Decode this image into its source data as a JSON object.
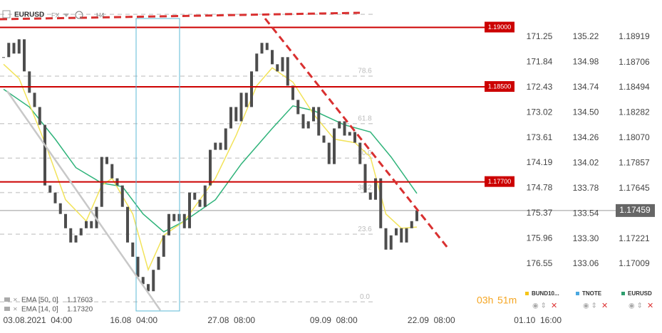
{
  "chart_data": {
    "type": "candlestick",
    "symbol": "EURUSD",
    "market": "FX",
    "timeframe": "H4",
    "xlim": [
      -0.69,
      100
    ],
    "xticks": [
      {
        "value": 6.6,
        "label": "03.08.2021  04:00"
      },
      {
        "value": 25.2,
        "label": "16.08  04:00"
      },
      {
        "value": 44.1,
        "label": "27.08  08:00"
      },
      {
        "value": 63.9,
        "label": "09.09  08:00"
      },
      {
        "value": 82.8,
        "label": "22.09  08:00"
      },
      {
        "value": 103.4,
        "label": "01.10  16:00"
      }
    ],
    "ylim": [
      1.16596,
      1.19141
    ],
    "yticks": [
      1.18919,
      1.18706,
      1.18494,
      1.18282,
      {
        "value": 1.1807,
        "label": "1.18070"
      },
      1.17857,
      1.17645,
      1.17221,
      1.17009
    ],
    "y2lim": [
      177.699,
      170.634
    ],
    "y2ticks": [
      171.25,
      171.84,
      172.43,
      173.02,
      173.61,
      174.19,
      174.78,
      175.37,
      175.96,
      176.55
    ],
    "y3lim": [
      132.593,
      135.471
    ],
    "y3ticks": [
      135.22,
      134.98,
      134.74,
      {
        "value": 134.5,
        "label": "134.50"
      },
      134.26,
      134.02,
      133.78,
      133.54,
      {
        "value": 133.3,
        "label": "133.30"
      },
      133.06
    ],
    "candle_color": "#4d4d4d",
    "series": [
      {
        "name": "EURUSD",
        "color": "#2e9e6e",
        "values": [
          1.1875,
          1.1887,
          1.1878,
          1.189,
          1.1863,
          1.1845,
          1.1833,
          1.1818,
          1.1767,
          1.1761,
          1.1752,
          1.1743,
          1.1731,
          1.1719,
          1.1725,
          1.1731,
          1.1737,
          1.1731,
          1.1749,
          1.1791,
          1.1785,
          1.1773,
          1.1767,
          1.1749,
          1.1719,
          1.1707,
          1.169,
          1.1684,
          1.1678,
          1.1696,
          1.1707,
          1.1725,
          1.1743,
          1.1737,
          1.1743,
          1.1731,
          1.1761,
          1.1755,
          1.1749,
          1.1767,
          1.1797,
          1.1803,
          1.1797,
          1.1815,
          1.1833,
          1.1821,
          1.1845,
          1.1833,
          1.1863,
          1.1878,
          1.1887,
          1.1881,
          1.1869,
          1.1863,
          1.1875,
          1.1851,
          1.1839,
          1.1827,
          1.1815,
          1.1821,
          1.1833,
          1.1809,
          1.1803,
          1.1785,
          1.1815,
          1.1821,
          1.1809,
          1.1812,
          1.1803,
          1.1785,
          1.1761,
          1.1755,
          1.1773,
          1.1731,
          1.1713,
          1.1725,
          1.1731,
          1.1719,
          1.1731,
          1.1737,
          1.17459
        ]
      }
    ],
    "last_price": 1.17459,
    "indicators": [
      {
        "name": "EMA [50, 0]",
        "color": "#2fb37a",
        "last": 1.17603,
        "x": [
          0,
          5,
          10,
          14,
          19,
          23,
          27,
          31,
          35,
          41,
          46,
          52,
          56,
          60,
          66,
          71,
          75,
          80
        ],
        "values": [
          1.1848,
          1.1833,
          1.1806,
          1.1782,
          1.1769,
          1.1766,
          1.1743,
          1.1728,
          1.1737,
          1.1755,
          1.1785,
          1.1815,
          1.1834,
          1.183,
          1.1818,
          1.1812,
          1.1791,
          1.17603
        ]
      },
      {
        "name": "EMA [14, 0]",
        "color": "#f2e35a",
        "last": {
          "value": 1.1732,
          "label": "1.17320"
        },
        "x": [
          0,
          3,
          8,
          12,
          16,
          19,
          21,
          25,
          28,
          31,
          35,
          41,
          45,
          49,
          52,
          56,
          60,
          64,
          68,
          71,
          74,
          77,
          80
        ],
        "values": [
          1.1869,
          1.1857,
          1.1803,
          1.1755,
          1.1737,
          1.1767,
          1.1773,
          1.1743,
          1.1696,
          1.1725,
          1.1737,
          1.1773,
          1.1809,
          1.1851,
          1.1866,
          1.1854,
          1.1827,
          1.1806,
          1.1803,
          1.1791,
          1.1743,
          1.1731,
          1.1732
        ]
      }
    ],
    "levels": [
      {
        "value": 1.19,
        "label": "1.19000"
      },
      {
        "value": 1.185,
        "label": "1.18500"
      },
      {
        "value": 1.177,
        "label": "1.17700"
      }
    ],
    "level_color": "#cc0000",
    "fibonacci": {
      "labels": [
        null,
        "78.6",
        "61.8",
        "50.0",
        "38.2",
        "23.6",
        "0.0"
      ],
      "prices": [
        1.1911,
        1.1859,
        1.1819,
        1.179,
        1.1761,
        1.1726,
        1.1669
      ]
    },
    "countdown": [
      "03h",
      "51m"
    ],
    "instruments": [
      {
        "name": "BUND10...",
        "color": "#f5c518"
      },
      {
        "name": "TNOTE",
        "color": "#4aa8e0"
      },
      {
        "name": "EURUSD",
        "color": "#2e9e6e"
      }
    ]
  }
}
